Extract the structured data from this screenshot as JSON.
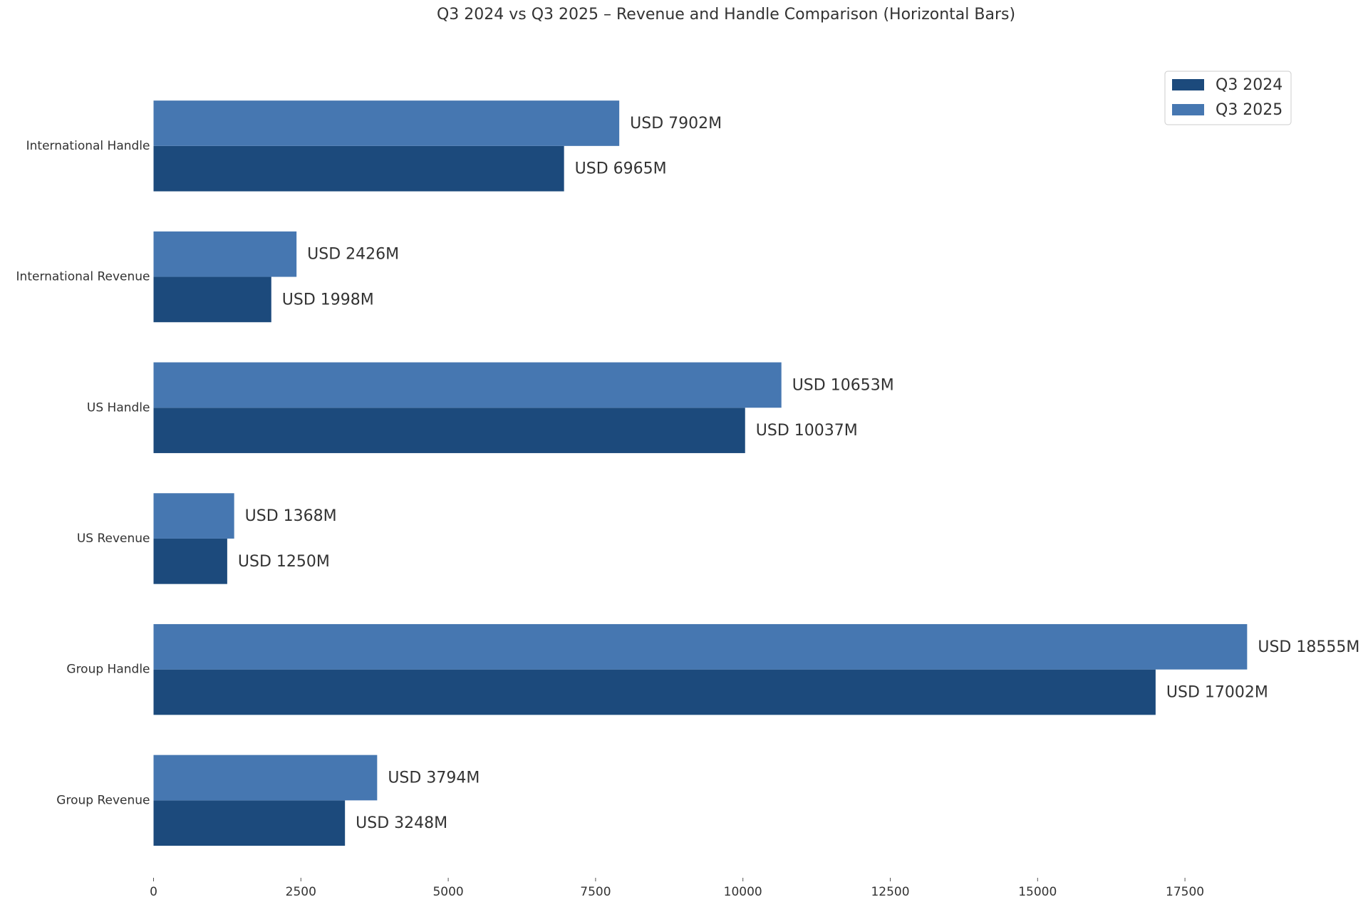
{
  "chart_data": {
    "type": "bar",
    "orientation": "horizontal",
    "title": "Q3 2024 vs Q3 2025 – Revenue and Handle Comparison (Horizontal Bars)",
    "categories": [
      "International Handle",
      "International Revenue",
      "US Handle",
      "US Revenue",
      "Group Handle",
      "Group Revenue"
    ],
    "series": [
      {
        "name": "Q3 2024",
        "color": "#1c4a7c",
        "values": [
          6965,
          1998,
          10037,
          1250,
          17002,
          3248
        ],
        "value_labels": [
          "USD 6965M",
          "USD 1998M",
          "USD 10037M",
          "USD 1250M",
          "USD 17002M",
          "USD 3248M"
        ]
      },
      {
        "name": "Q3 2025",
        "color": "#4677b1",
        "values": [
          7902,
          2426,
          10653,
          1368,
          18555,
          3794
        ],
        "value_labels": [
          "USD 7902M",
          "USD 2426M",
          "USD 10653M",
          "USD 1368M",
          "USD 18555M",
          "USD 3794M"
        ]
      }
    ],
    "xlim": [
      0,
      20410
    ],
    "xticks": [
      0,
      2500,
      5000,
      7500,
      10000,
      12500,
      15000,
      17500
    ],
    "grid": false,
    "legend": "upper right"
  }
}
